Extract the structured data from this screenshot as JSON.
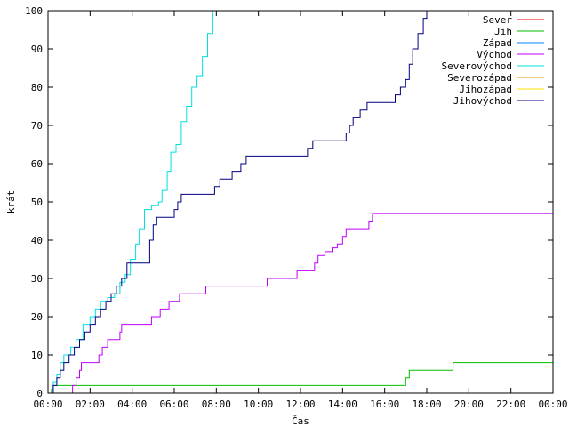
{
  "chart_data": {
    "type": "line",
    "xlabel": "Čas",
    "ylabel": "krát",
    "xlim": [
      "00:00",
      "24:00"
    ],
    "ylim": [
      0,
      100
    ],
    "x_ticks": [
      "00:00",
      "02:00",
      "04:00",
      "06:00",
      "08:00",
      "10:00",
      "12:00",
      "14:00",
      "16:00",
      "18:00",
      "20:00",
      "22:00",
      "00:00"
    ],
    "y_ticks": [
      0,
      10,
      20,
      30,
      40,
      50,
      60,
      70,
      80,
      90,
      100
    ],
    "grid": false,
    "legend_position": "top-right",
    "series": [
      {
        "name": "Sever",
        "color": "#ff0000",
        "points": []
      },
      {
        "name": "Jih",
        "color": "#00c000",
        "points": [
          [
            "00:05",
            0
          ],
          [
            "00:10",
            1
          ],
          [
            "00:15",
            2
          ],
          [
            "16:50",
            2
          ],
          [
            "17:00",
            4
          ],
          [
            "17:10",
            6
          ],
          [
            "19:10",
            6
          ],
          [
            "19:15",
            8
          ],
          [
            "24:00",
            8
          ]
        ]
      },
      {
        "name": "Západ",
        "color": "#0080ff",
        "points": []
      },
      {
        "name": "Východ",
        "color": "#c000ff",
        "points": [
          [
            "01:05",
            0
          ],
          [
            "01:10",
            2
          ],
          [
            "01:20",
            4
          ],
          [
            "01:30",
            6
          ],
          [
            "01:35",
            8
          ],
          [
            "02:20",
            8
          ],
          [
            "02:25",
            10
          ],
          [
            "02:35",
            12
          ],
          [
            "02:50",
            14
          ],
          [
            "03:25",
            16
          ],
          [
            "03:30",
            18
          ],
          [
            "04:50",
            18
          ],
          [
            "04:55",
            20
          ],
          [
            "05:20",
            22
          ],
          [
            "05:45",
            24
          ],
          [
            "06:15",
            26
          ],
          [
            "07:25",
            26
          ],
          [
            "07:30",
            28
          ],
          [
            "10:20",
            28
          ],
          [
            "10:25",
            30
          ],
          [
            "11:45",
            30
          ],
          [
            "11:50",
            32
          ],
          [
            "12:30",
            32
          ],
          [
            "12:40",
            34
          ],
          [
            "12:50",
            36
          ],
          [
            "13:10",
            37
          ],
          [
            "13:30",
            38
          ],
          [
            "13:45",
            39
          ],
          [
            "14:00",
            41
          ],
          [
            "14:10",
            43
          ],
          [
            "15:05",
            43
          ],
          [
            "15:15",
            45
          ],
          [
            "15:25",
            47
          ],
          [
            "24:00",
            47
          ]
        ]
      },
      {
        "name": "Severovýchod",
        "color": "#00e0e0",
        "points": [
          [
            "00:05",
            0
          ],
          [
            "00:15",
            3
          ],
          [
            "00:25",
            5
          ],
          [
            "00:35",
            8
          ],
          [
            "00:45",
            10
          ],
          [
            "01:05",
            12
          ],
          [
            "01:20",
            14
          ],
          [
            "01:40",
            18
          ],
          [
            "02:00",
            20
          ],
          [
            "02:15",
            22
          ],
          [
            "02:30",
            24
          ],
          [
            "02:50",
            25
          ],
          [
            "03:10",
            26
          ],
          [
            "03:25",
            29
          ],
          [
            "03:40",
            31
          ],
          [
            "03:55",
            35
          ],
          [
            "04:10",
            39
          ],
          [
            "04:20",
            43
          ],
          [
            "04:35",
            48
          ],
          [
            "04:55",
            49
          ],
          [
            "05:15",
            50
          ],
          [
            "05:25",
            53
          ],
          [
            "05:40",
            58
          ],
          [
            "05:50",
            63
          ],
          [
            "06:05",
            65
          ],
          [
            "06:20",
            71
          ],
          [
            "06:35",
            75
          ],
          [
            "06:50",
            80
          ],
          [
            "07:05",
            83
          ],
          [
            "07:20",
            88
          ],
          [
            "07:35",
            94
          ],
          [
            "07:50",
            100
          ]
        ]
      },
      {
        "name": "Severozápad",
        "color": "#e09000",
        "points": []
      },
      {
        "name": "Jihozápad",
        "color": "#ffe000",
        "points": []
      },
      {
        "name": "Jihovýchod",
        "color": "#000080",
        "points": [
          [
            "00:10",
            0
          ],
          [
            "00:15",
            2
          ],
          [
            "00:25",
            4
          ],
          [
            "00:35",
            6
          ],
          [
            "00:45",
            8
          ],
          [
            "01:00",
            10
          ],
          [
            "01:15",
            12
          ],
          [
            "01:30",
            14
          ],
          [
            "01:45",
            16
          ],
          [
            "02:00",
            18
          ],
          [
            "02:15",
            20
          ],
          [
            "02:30",
            22
          ],
          [
            "02:45",
            24
          ],
          [
            "03:00",
            26
          ],
          [
            "03:15",
            28
          ],
          [
            "03:30",
            30
          ],
          [
            "03:45",
            34
          ],
          [
            "04:40",
            34
          ],
          [
            "04:50",
            40
          ],
          [
            "05:00",
            44
          ],
          [
            "05:10",
            46
          ],
          [
            "05:50",
            46
          ],
          [
            "06:00",
            48
          ],
          [
            "06:10",
            50
          ],
          [
            "06:20",
            52
          ],
          [
            "07:45",
            52
          ],
          [
            "07:55",
            54
          ],
          [
            "08:10",
            56
          ],
          [
            "08:35",
            56
          ],
          [
            "08:45",
            58
          ],
          [
            "09:10",
            60
          ],
          [
            "09:25",
            62
          ],
          [
            "12:10",
            62
          ],
          [
            "12:20",
            64
          ],
          [
            "12:35",
            66
          ],
          [
            "14:00",
            66
          ],
          [
            "14:10",
            68
          ],
          [
            "14:20",
            70
          ],
          [
            "14:30",
            72
          ],
          [
            "14:50",
            74
          ],
          [
            "15:10",
            76
          ],
          [
            "16:20",
            76
          ],
          [
            "16:30",
            78
          ],
          [
            "16:45",
            80
          ],
          [
            "17:00",
            82
          ],
          [
            "17:10",
            86
          ],
          [
            "17:20",
            90
          ],
          [
            "17:35",
            94
          ],
          [
            "17:50",
            98
          ],
          [
            "18:00",
            100
          ]
        ]
      }
    ]
  }
}
